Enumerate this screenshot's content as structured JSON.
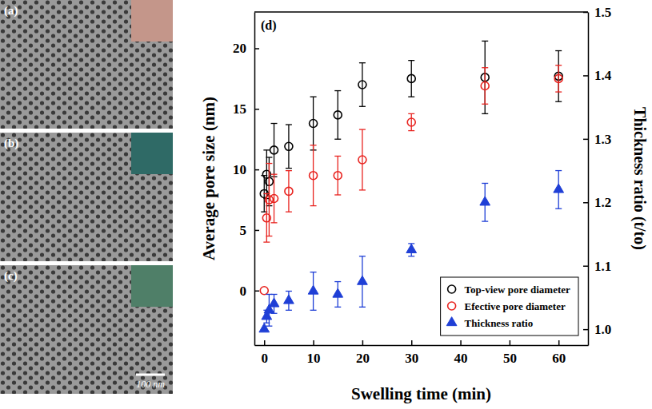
{
  "images": {
    "panels": [
      {
        "label": "(a)",
        "color": "#c4968a"
      },
      {
        "label": "(b)",
        "color": "#2f6a66"
      },
      {
        "label": "(c)",
        "color": "#4f7f68"
      }
    ],
    "scale_bar": "100 nm"
  },
  "chart_data": {
    "type": "scatter",
    "annotations": [
      "(d)"
    ],
    "xlabel": "Swelling time (min)",
    "ylabel": "Average pore size (nm)",
    "y2label": "Thickness ratio (t/to)",
    "x": [
      0,
      0.5,
      1,
      2,
      5,
      10,
      15,
      20,
      30,
      45,
      60
    ],
    "xlim": [
      -2,
      66
    ],
    "xticks": [
      0,
      10,
      20,
      30,
      40,
      50,
      60
    ],
    "ylim": [
      -4.5,
      23
    ],
    "yticks": [
      0,
      5,
      10,
      15,
      20
    ],
    "y2lim": [
      0.975,
      1.5
    ],
    "y2ticks": [
      {
        "value": 1.0,
        "label": "1.0"
      },
      1.1,
      1.2,
      1.3,
      1.4,
      1.5
    ],
    "legend": "lower right",
    "series": [
      {
        "name": "Top-view pore diameter",
        "color": "#000000",
        "marker": "circle-open",
        "values": [
          8.0,
          9.6,
          9.0,
          11.6,
          11.9,
          13.8,
          14.5,
          17.0,
          17.5,
          17.6,
          17.7
        ],
        "errors": [
          1.5,
          2.0,
          2.0,
          2.2,
          1.8,
          2.2,
          2.0,
          1.8,
          1.5,
          3.0,
          2.1
        ]
      },
      {
        "name": "Efective pore diameter",
        "color": "#e8231f",
        "marker": "circle-open",
        "values": [
          0,
          6.0,
          7.5,
          7.6,
          8.2,
          9.5,
          9.5,
          10.8,
          13.9,
          16.9,
          17.5
        ],
        "errors": [
          null,
          2.0,
          3.0,
          2.0,
          1.7,
          2.5,
          1.6,
          2.5,
          0.7,
          1.5,
          1.1
        ]
      },
      {
        "name": "Thickness ratio",
        "color": "#1f3fd6",
        "marker": "triangle",
        "axis": "y2",
        "values": [
          1.0,
          1.02,
          1.03,
          1.04,
          1.045,
          1.06,
          1.055,
          1.075,
          1.125,
          1.2,
          1.22
        ],
        "errors": [
          null,
          0.01,
          0.025,
          0.015,
          0.015,
          0.03,
          0.02,
          0.04,
          0.01,
          0.03,
          0.03
        ]
      }
    ]
  }
}
